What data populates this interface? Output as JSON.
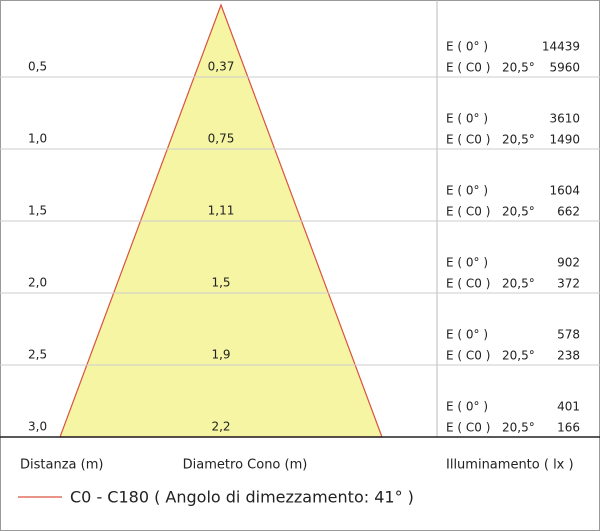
{
  "rows": [
    {
      "distance": "0,5",
      "diameter": "0,37",
      "e0_label": "E ( 0° )",
      "e0_value": 14439,
      "ec0_label": "E ( C0 )",
      "angle": "20,5°",
      "ec0_value": 5960
    },
    {
      "distance": "1,0",
      "diameter": "0,75",
      "e0_label": "E ( 0° )",
      "e0_value": 3610,
      "ec0_label": "E ( C0 )",
      "angle": "20,5°",
      "ec0_value": 1490
    },
    {
      "distance": "1,5",
      "diameter": "1,11",
      "e0_label": "E ( 0° )",
      "e0_value": 1604,
      "ec0_label": "E ( C0 )",
      "angle": "20,5°",
      "ec0_value": 662
    },
    {
      "distance": "2,0",
      "diameter": "1,5",
      "e0_label": "E ( 0° )",
      "e0_value": 902,
      "ec0_label": "E ( C0 )",
      "angle": "20,5°",
      "ec0_value": 372
    },
    {
      "distance": "2,5",
      "diameter": "1,9",
      "e0_label": "E ( 0° )",
      "e0_value": 578,
      "ec0_label": "E ( C0 )",
      "angle": "20,5°",
      "ec0_value": 238
    },
    {
      "distance": "3,0",
      "diameter": "2,2",
      "e0_label": "E ( 0° )",
      "e0_value": 401,
      "ec0_label": "E ( C0 )",
      "angle": "20,5°",
      "ec0_value": 166
    }
  ],
  "footer": {
    "distance_label": "Distanza (m)",
    "diameter_label": "Diametro Cono (m)",
    "illuminance_label": "Illuminamento ( lx )"
  },
  "legend": {
    "label": "C0 - C180  ( Angolo di dimezzamento: 41° )"
  }
}
